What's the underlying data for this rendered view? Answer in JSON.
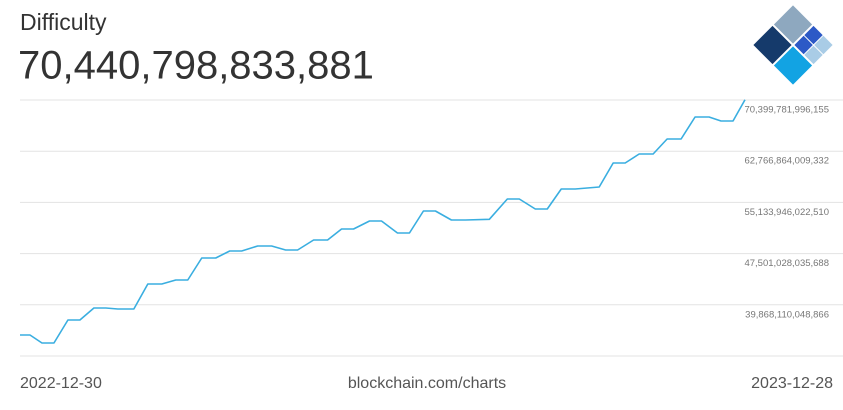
{
  "chart_data": {
    "type": "line",
    "title": "Difficulty",
    "headline": "70,440,798,833,881",
    "source": "blockchain.com/charts",
    "x": [
      "2022-12-30",
      "2023-01-04",
      "2023-01-10",
      "2023-01-16",
      "2023-01-23",
      "2023-01-29",
      "2023-02-05",
      "2023-02-11",
      "2023-02-17",
      "2023-02-25",
      "2023-03-04",
      "2023-03-11",
      "2023-03-18",
      "2023-03-24",
      "2023-03-31",
      "2023-04-07",
      "2023-04-14",
      "2023-04-20",
      "2023-04-28",
      "2023-05-05",
      "2023-05-12",
      "2023-05-18",
      "2023-05-26",
      "2023-06-02",
      "2023-06-09",
      "2023-06-15",
      "2023-06-23",
      "2023-06-29",
      "2023-07-07",
      "2023-07-13",
      "2023-07-20",
      "2023-07-26",
      "2023-08-03",
      "2023-08-10",
      "2023-08-22",
      "2023-08-31",
      "2023-09-06",
      "2023-09-14",
      "2023-09-20",
      "2023-09-27",
      "2023-10-04",
      "2023-10-16",
      "2023-10-23",
      "2023-10-29",
      "2023-11-05",
      "2023-11-12",
      "2023-11-19",
      "2023-11-26",
      "2023-12-03",
      "2023-12-10",
      "2023-12-16",
      "2023-12-22",
      "2023-12-28"
    ],
    "series": [
      {
        "name": "Difficulty",
        "color": "#3aaee0",
        "values": [
          35366000000000,
          35366000000000,
          34173000000000,
          34173000000000,
          37602000000000,
          37602000000000,
          39391000000000,
          39391000000000,
          39242000000000,
          39242000000000,
          42969000000000,
          42969000000000,
          43565000000000,
          43565000000000,
          46845000000000,
          46845000000000,
          47888000000000,
          47888000000000,
          48634000000000,
          48634000000000,
          48038000000000,
          48038000000000,
          49528000000000,
          49528000000000,
          51168000000000,
          51168000000000,
          52361000000000,
          52361000000000,
          50572000000000,
          50572000000000,
          53852000000000,
          53852000000000,
          52510000000000,
          52510000000000,
          52610000000000,
          55641000000000,
          55641000000000,
          54150000000000,
          54150000000000,
          57132000000000,
          57132000000000,
          57430000000000,
          61008000000000,
          61008000000000,
          62349000000000,
          62349000000000,
          64586000000000,
          64586000000000,
          67865000000000,
          67865000000000,
          67269000000000,
          67269000000000,
          70440798833881
        ]
      }
    ],
    "xlim": [
      "2022-12-30",
      "2023-12-28"
    ],
    "xticks": [
      "2022-12-30",
      "2023-12-28"
    ],
    "ylim": [
      32235192062044,
      70399781996155
    ],
    "yticks": [
      {
        "value": 39868110048866,
        "label": "39,868,110,048,866"
      },
      {
        "value": 47501028035688,
        "label": "47,501,028,035,688"
      },
      {
        "value": 55133946022510,
        "label": "55,133,946,022,510"
      },
      {
        "value": 62766864009332,
        "label": "62,766,864,009,332"
      },
      {
        "value": 70399781996155,
        "label": "70,399,781,996,155"
      }
    ],
    "grid": true
  }
}
